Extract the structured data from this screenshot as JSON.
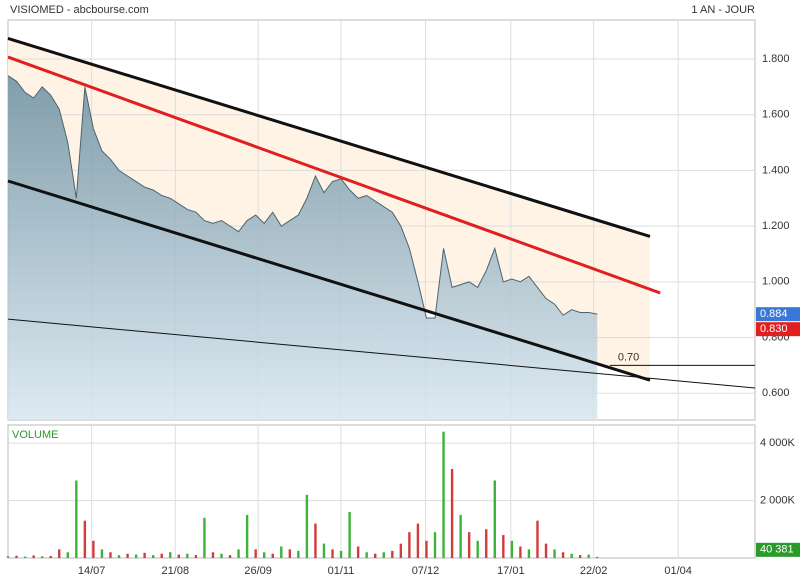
{
  "header": {
    "title": "VISIOMED - abcbourse.com",
    "period": "1 AN - JOUR"
  },
  "chart_data": [
    {
      "type": "line",
      "xlim": [
        0,
        87.5
      ],
      "ylim": [
        0.504,
        1.94
      ],
      "yticks": [
        {
          "value": 0.6,
          "label": "0.600"
        },
        {
          "value": 0.8,
          "label": "0.800"
        },
        {
          "value": 1.0,
          "label": "1.000"
        },
        {
          "value": 1.2,
          "label": "1.200"
        },
        {
          "value": 1.4,
          "label": "1.400"
        },
        {
          "value": 1.6,
          "label": "1.600"
        },
        {
          "value": 1.8,
          "label": "1.800"
        }
      ],
      "xticks": [
        {
          "value": 9.8,
          "label": "14/07"
        },
        {
          "value": 19.6,
          "label": "21/08"
        },
        {
          "value": 29.3,
          "label": "26/09"
        },
        {
          "value": 39,
          "label": "01/11"
        },
        {
          "value": 48.9,
          "label": "07/12"
        },
        {
          "value": 58.9,
          "label": "17/01"
        },
        {
          "value": 68.6,
          "label": "22/02"
        },
        {
          "value": 78.5,
          "label": "01/04"
        }
      ],
      "grid": true,
      "series": [
        {
          "name": "VISIOMED",
          "color": "#4a6470",
          "values": [
            1.74,
            1.72,
            1.68,
            1.66,
            1.7,
            1.67,
            1.62,
            1.5,
            1.3,
            1.7,
            1.55,
            1.47,
            1.44,
            1.4,
            1.38,
            1.36,
            1.34,
            1.33,
            1.31,
            1.3,
            1.28,
            1.26,
            1.25,
            1.22,
            1.21,
            1.22,
            1.2,
            1.18,
            1.22,
            1.24,
            1.21,
            1.25,
            1.2,
            1.22,
            1.24,
            1.3,
            1.38,
            1.32,
            1.36,
            1.37,
            1.33,
            1.3,
            1.31,
            1.29,
            1.27,
            1.25,
            1.2,
            1.12,
            1.0,
            0.87,
            0.87,
            1.12,
            0.98,
            0.99,
            1.0,
            0.98,
            1.04,
            1.12,
            1.0,
            1.01,
            1.0,
            1.02,
            0.98,
            0.94,
            0.92,
            0.88,
            0.9,
            0.89,
            0.89,
            0.884
          ]
        }
      ],
      "trendlines": [
        {
          "color": "#111111",
          "x": [
            0,
            75.2
          ],
          "values": [
            1.874,
            1.163
          ]
        },
        {
          "color": "#e02020",
          "x": [
            0,
            76.4
          ],
          "values": [
            1.807,
            0.96
          ]
        },
        {
          "color": "#111111",
          "x": [
            0,
            75.2
          ],
          "values": [
            1.362,
            0.647
          ]
        },
        {
          "color": "#111111",
          "x": [
            0,
            87.5
          ],
          "values": [
            0.866,
            0.619
          ]
        }
      ],
      "level": {
        "value": 0.7,
        "label": "0.70",
        "x": [
          70.5,
          87.5
        ]
      },
      "last_price": 0.884,
      "marker_price": {
        "value": 0.83,
        "label": "0.830"
      }
    },
    {
      "type": "bar",
      "title": "VOLUME",
      "ylim": [
        0,
        4632
      ],
      "yticks": [
        {
          "value": 2000,
          "label": "2 000K"
        },
        {
          "value": 4000,
          "label": "4 000K"
        }
      ],
      "values": [
        60,
        80,
        50,
        90,
        60,
        70,
        300,
        200,
        2700,
        1300,
        600,
        300,
        200,
        100,
        150,
        120,
        180,
        100,
        150,
        200,
        120,
        150,
        100,
        1400,
        200,
        150,
        100,
        300,
        1500,
        300,
        200,
        150,
        400,
        300,
        250,
        2200,
        1200,
        500,
        300,
        250,
        1600,
        400,
        200,
        150,
        200,
        250,
        500,
        900,
        1200,
        600,
        900,
        4400,
        3100,
        1500,
        900,
        600,
        1000,
        2700,
        800,
        600,
        400,
        300,
        1300,
        500,
        300,
        200,
        150,
        100,
        120,
        40.381
      ],
      "colors": [
        "#3cb43c",
        "#d23c3c",
        "#3cb43c",
        "#d23c3c",
        "#3cb43c",
        "#d23c3c",
        "#d23c3c",
        "#3cb43c",
        "#3cb43c",
        "#d23c3c",
        "#d23c3c",
        "#3cb43c",
        "#d23c3c",
        "#3cb43c",
        "#d23c3c",
        "#3cb43c",
        "#d23c3c",
        "#3cb43c",
        "#d23c3c",
        "#3cb43c",
        "#d23c3c",
        "#3cb43c",
        "#d23c3c",
        "#3cb43c",
        "#d23c3c",
        "#3cb43c",
        "#d23c3c",
        "#3cb43c",
        "#3cb43c",
        "#d23c3c",
        "#3cb43c",
        "#d23c3c",
        "#3cb43c",
        "#d23c3c",
        "#3cb43c",
        "#3cb43c",
        "#d23c3c",
        "#3cb43c",
        "#d23c3c",
        "#3cb43c",
        "#3cb43c",
        "#d23c3c",
        "#3cb43c",
        "#d23c3c",
        "#3cb43c",
        "#d23c3c",
        "#d23c3c",
        "#d23c3c",
        "#d23c3c",
        "#d23c3c",
        "#3cb43c",
        "#3cb43c",
        "#d23c3c",
        "#3cb43c",
        "#d23c3c",
        "#3cb43c",
        "#d23c3c",
        "#3cb43c",
        "#d23c3c",
        "#3cb43c",
        "#d23c3c",
        "#3cb43c",
        "#d23c3c",
        "#d23c3c",
        "#3cb43c",
        "#d23c3c",
        "#3cb43c",
        "#d23c3c",
        "#3cb43c",
        "#3cb43c"
      ],
      "last_volume": {
        "value": 40.381,
        "label": "40 381"
      }
    }
  ]
}
